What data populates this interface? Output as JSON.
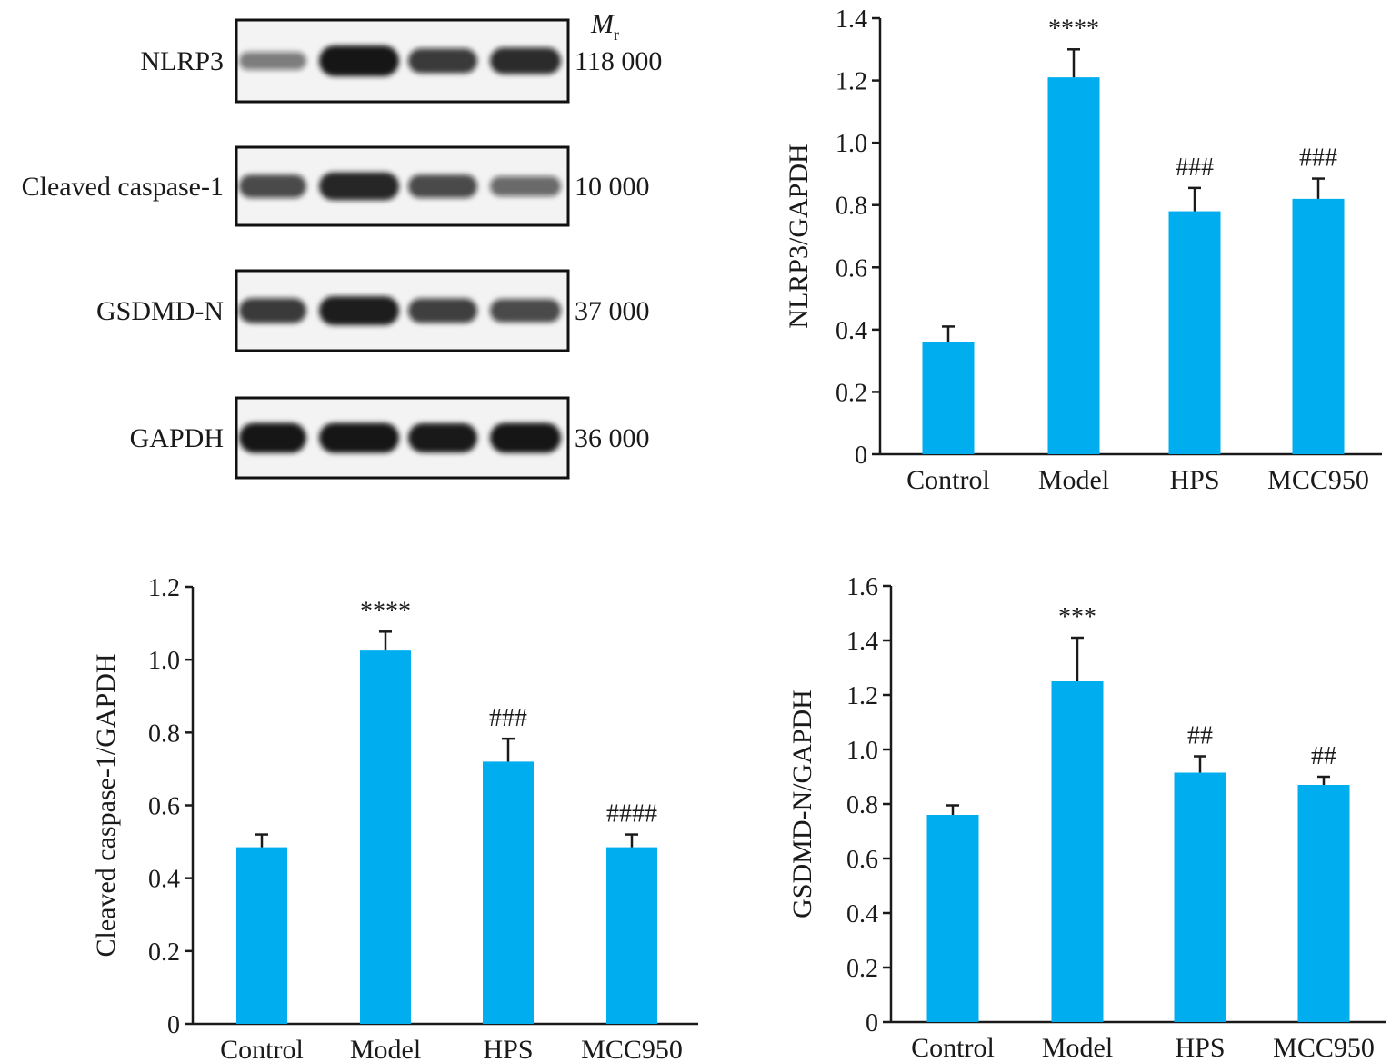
{
  "western_blot": {
    "mr_header": {
      "symbol": "M",
      "subscript": "r"
    },
    "rows": [
      {
        "protein": "NLRP3",
        "mr": "118 000",
        "intensities": [
          0.35,
          1.0,
          0.7,
          0.78
        ]
      },
      {
        "protein": "Cleaved caspase-1",
        "mr": "10 000",
        "intensities": [
          0.62,
          0.85,
          0.62,
          0.45
        ]
      },
      {
        "protein": "GSDMD-N",
        "mr": "37 000",
        "intensities": [
          0.7,
          0.9,
          0.68,
          0.62
        ]
      },
      {
        "protein": "GAPDH",
        "mr": "36 000",
        "intensities": [
          0.95,
          0.95,
          0.92,
          0.95
        ]
      }
    ]
  },
  "colors": {
    "bar": "#00aeef",
    "axis": "#1a1a1a",
    "band": "#141414"
  },
  "chart_data": [
    {
      "type": "bar",
      "categories": [
        "Control",
        "Model",
        "HPS",
        "MCC950"
      ],
      "values": [
        0.36,
        1.21,
        0.78,
        0.82
      ],
      "errors": [
        0.05,
        0.09,
        0.075,
        0.065
      ],
      "annotations": [
        "",
        "****",
        "###",
        "###"
      ],
      "ylabel": "NLRP3/GAPDH",
      "ylim": [
        0,
        1.4
      ],
      "yticks": [
        0,
        0.2,
        0.4,
        0.6,
        0.8,
        1.0,
        1.2,
        1.4
      ],
      "yticklabels": [
        "0",
        "0.2",
        "0.4",
        "0.6",
        "0.8",
        "1.0",
        "1.2",
        "1.4"
      ]
    },
    {
      "type": "bar",
      "categories": [
        "Control",
        "Model",
        "HPS",
        "MCC950"
      ],
      "values": [
        0.485,
        1.025,
        0.72,
        0.485
      ],
      "errors": [
        0.035,
        0.052,
        0.063,
        0.035
      ],
      "annotations": [
        "",
        "****",
        "###",
        "####"
      ],
      "ylabel": "Cleaved caspase-1/GAPDH",
      "ylim": [
        0,
        1.2
      ],
      "yticks": [
        0,
        0.2,
        0.4,
        0.6,
        0.8,
        1.0,
        1.2
      ],
      "yticklabels": [
        "0",
        "0.2",
        "0.4",
        "0.6",
        "0.8",
        "1.0",
        "1.2"
      ]
    },
    {
      "type": "bar",
      "categories": [
        "Control",
        "Model",
        "HPS",
        "MCC950"
      ],
      "values": [
        0.76,
        1.25,
        0.915,
        0.87
      ],
      "errors": [
        0.035,
        0.16,
        0.06,
        0.03
      ],
      "annotations": [
        "",
        "***",
        "##",
        "##"
      ],
      "ylabel": "GSDMD-N/GAPDH",
      "ylim": [
        0,
        1.6
      ],
      "yticks": [
        0,
        0.2,
        0.4,
        0.6,
        0.8,
        1.0,
        1.2,
        1.4,
        1.6
      ],
      "yticklabels": [
        "0",
        "0.2",
        "0.4",
        "0.6",
        "0.8",
        "1.0",
        "1.2",
        "1.4",
        "1.6"
      ]
    }
  ]
}
